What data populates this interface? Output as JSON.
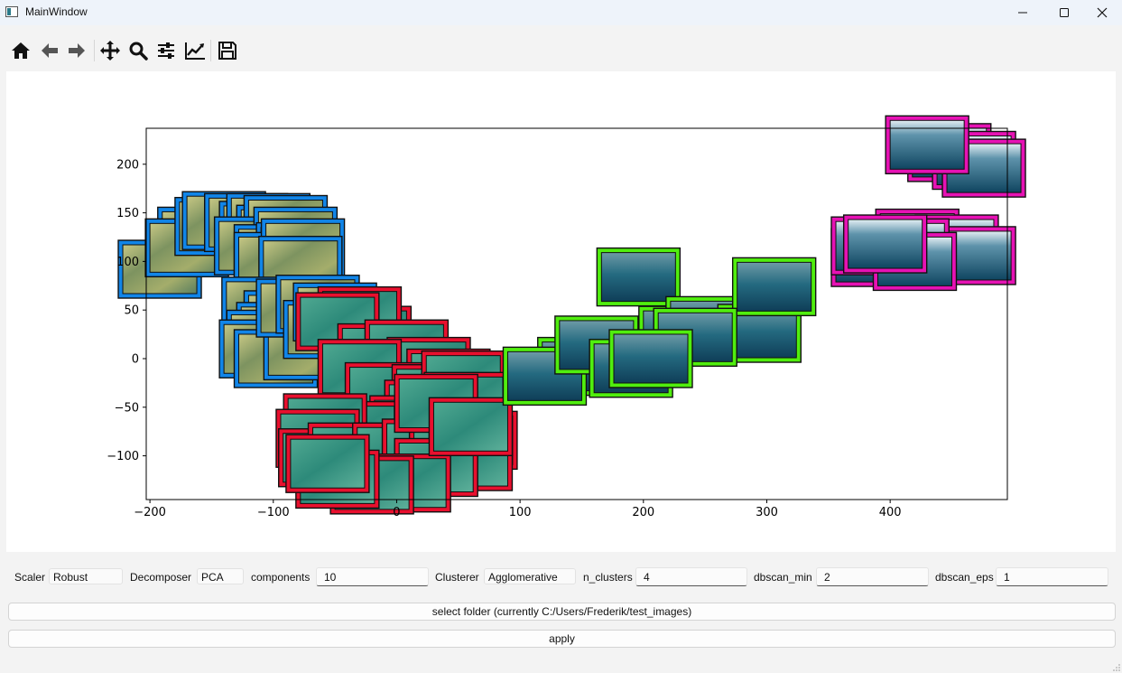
{
  "window": {
    "title": "MainWindow"
  },
  "toolbar": {
    "tools": [
      "home-icon",
      "back-arrow-icon",
      "forward-arrow-icon",
      "pan-icon",
      "zoom-icon",
      "subplots-config-icon",
      "axes-edit-icon",
      "save-icon"
    ]
  },
  "chart_data": {
    "type": "scatter",
    "title": "",
    "xlabel": "",
    "ylabel": "",
    "xlim": [
      -203,
      495
    ],
    "ylim": [
      -145,
      237
    ],
    "xticks": [
      -200,
      -100,
      0,
      100,
      200,
      300,
      400
    ],
    "yticks": [
      -100,
      -50,
      0,
      50,
      100,
      150,
      200
    ],
    "xtick_labels": [
      "−200",
      "−100",
      "0",
      "100",
      "200",
      "300",
      "400"
    ],
    "ytick_labels": [
      "−100",
      "−50",
      "0",
      "50",
      "100",
      "150",
      "200"
    ],
    "markers": "image thumbnails with cluster-colored frames",
    "grid": false,
    "series": [
      {
        "cluster": 0,
        "color": "#1185e8",
        "thumb": "sandy-seabed",
        "points": [
          [
            -192,
            92
          ],
          [
            -160,
            126
          ],
          [
            -170,
            114
          ],
          [
            -146,
            136
          ],
          [
            -140,
            142
          ],
          [
            -122,
            140
          ],
          [
            -110,
            132
          ],
          [
            -104,
            140
          ],
          [
            -96,
            128
          ],
          [
            -90,
            138
          ],
          [
            -114,
            116
          ],
          [
            -82,
            126
          ],
          [
            -98,
            108
          ],
          [
            -80,
            110
          ],
          [
            -82,
            84
          ],
          [
            -84,
            80
          ],
          [
            -98,
            100
          ],
          [
            -76,
            114
          ],
          [
            -78,
            96
          ],
          [
            -108,
            54
          ],
          [
            -90,
            40
          ],
          [
            -96,
            28
          ],
          [
            -104,
            20
          ],
          [
            -110,
            10
          ],
          [
            -98,
            0
          ],
          [
            -74,
            8
          ],
          [
            -80,
            52
          ],
          [
            -64,
            56
          ],
          [
            -58,
            30
          ],
          [
            -50,
            48
          ]
        ]
      },
      {
        "cluster": 1,
        "color": "#e8102e",
        "thumb": "sea-grass-teal",
        "points": [
          [
            -22,
            24
          ],
          [
            -30,
            44
          ],
          [
            -48,
            38
          ],
          [
            -14,
            6
          ],
          [
            8,
            10
          ],
          [
            26,
            -8
          ],
          [
            42,
            -20
          ],
          [
            -30,
            -10
          ],
          [
            -8,
            -34
          ],
          [
            30,
            -36
          ],
          [
            54,
            -22
          ],
          [
            56,
            -44
          ],
          [
            24,
            -52
          ],
          [
            12,
            -68
          ],
          [
            -4,
            -80
          ],
          [
            -32,
            -74
          ],
          [
            -58,
            -66
          ],
          [
            -64,
            -82
          ],
          [
            -62,
            -102
          ],
          [
            -38,
            -96
          ],
          [
            -12,
            -108
          ],
          [
            -2,
            -96
          ],
          [
            22,
            -92
          ],
          [
            44,
            -96
          ],
          [
            64,
            -84
          ],
          [
            60,
            -106
          ],
          [
            32,
            -112
          ],
          [
            10,
            -128
          ],
          [
            -20,
            -130
          ],
          [
            -48,
            -124
          ],
          [
            -56,
            -108
          ],
          [
            32,
            -46
          ],
          [
            60,
            -70
          ]
        ]
      },
      {
        "cluster": 2,
        "color": "#50ee0e",
        "thumb": "open-water",
        "points": [
          [
            196,
            84
          ],
          [
            148,
            -8
          ],
          [
            120,
            -18
          ],
          [
            162,
            14
          ],
          [
            190,
            -10
          ],
          [
            230,
            24
          ],
          [
            252,
            34
          ],
          [
            294,
            26
          ],
          [
            306,
            74
          ],
          [
            242,
            22
          ],
          [
            206,
            0
          ]
        ]
      },
      {
        "cluster": 3,
        "color": "#e612b4",
        "thumb": "surface-sunlight",
        "points": [
          [
            448,
            212
          ],
          [
            468,
            204
          ],
          [
            476,
            196
          ],
          [
            430,
            220
          ],
          [
            422,
            124
          ],
          [
            454,
            118
          ],
          [
            468,
            106
          ],
          [
            414,
            114
          ],
          [
            386,
            104
          ],
          [
            386,
            116
          ],
          [
            420,
            100
          ],
          [
            396,
            118
          ]
        ]
      }
    ]
  },
  "controls": {
    "scaler_label": "Scaler",
    "scaler_value": "Robust",
    "decomposer_label": "Decomposer",
    "decomposer_value": "PCA",
    "components_label": "components",
    "components_value": "10",
    "clusterer_label": "Clusterer",
    "clusterer_value": "Agglomerative",
    "n_clusters_label": "n_clusters",
    "n_clusters_value": "4",
    "dbscan_min_label": "dbscan_min",
    "dbscan_min_value": "2",
    "dbscan_eps_label": "dbscan_eps",
    "dbscan_eps_value": "1"
  },
  "buttons": {
    "select_folder": "select folder (currently C:/Users/Frederik/test_images)",
    "apply": "apply"
  }
}
